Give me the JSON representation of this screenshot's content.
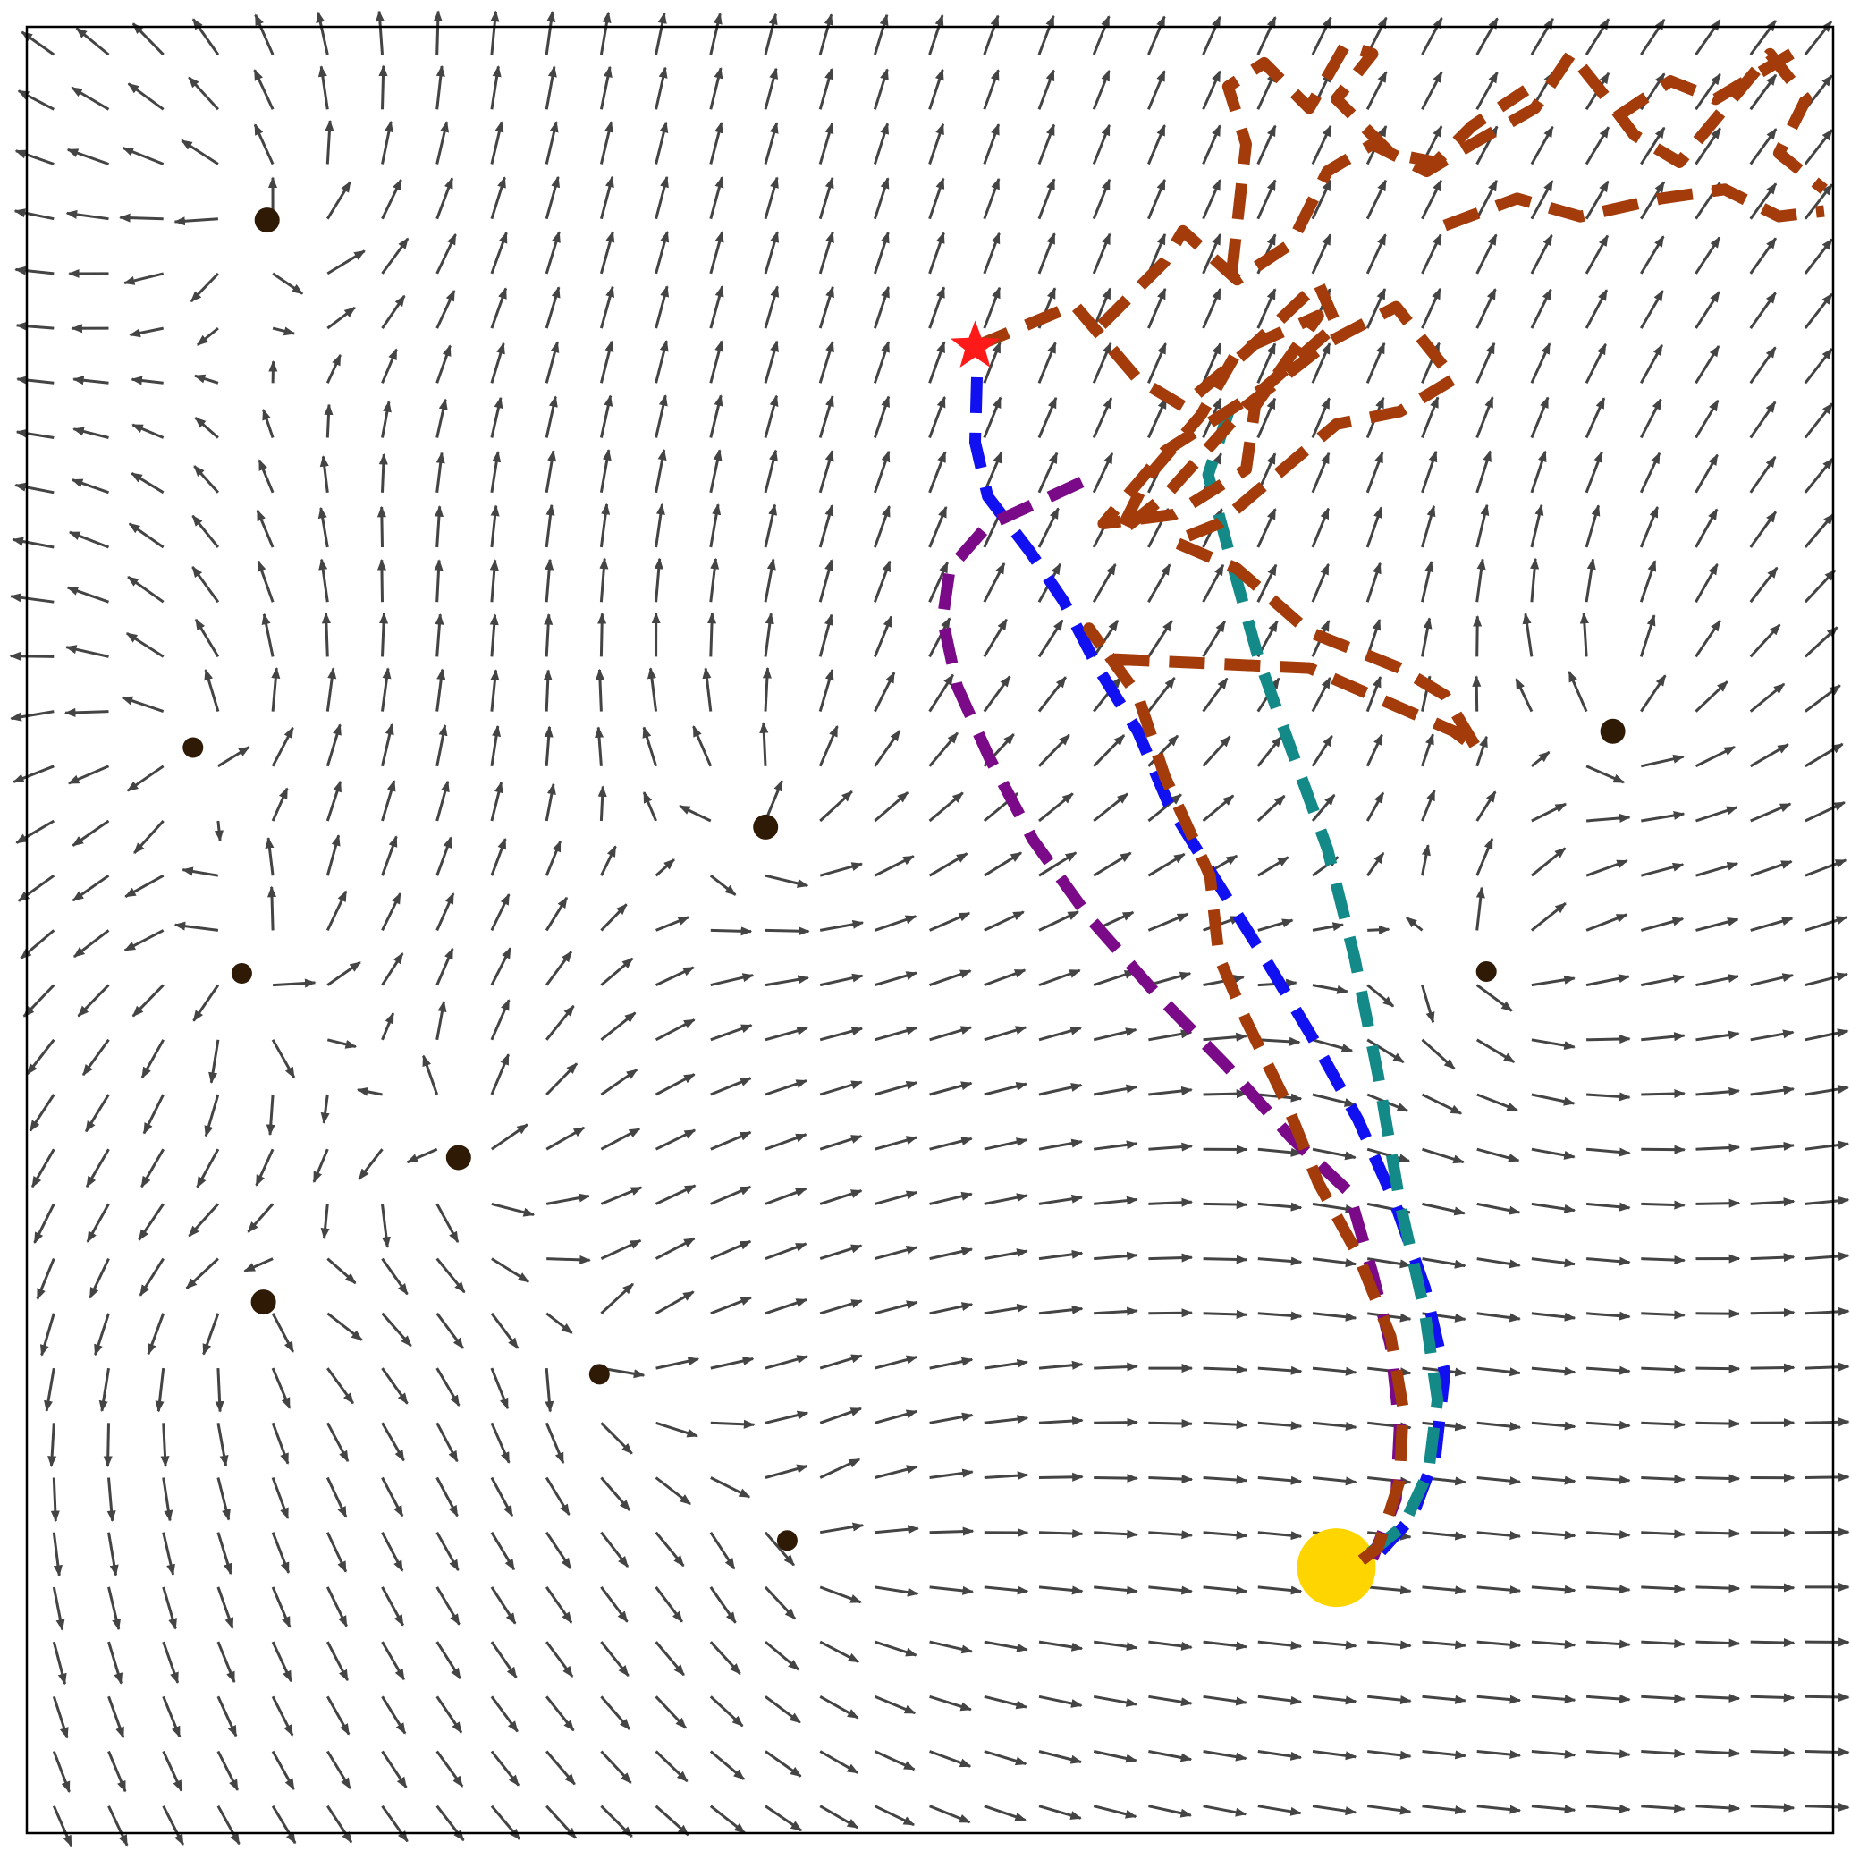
{
  "chart_data": {
    "type": "quiver",
    "xlim": [
      0,
      100
    ],
    "ylim": [
      0,
      100
    ],
    "grid": false,
    "arrow_color": "#444444",
    "start": {
      "x": 52.5,
      "y": 82.3,
      "color": "#ff1a1a",
      "marker": "star"
    },
    "goal": {
      "x": 72.5,
      "y": 14.7,
      "color": "#ffd500",
      "marker": "circle"
    },
    "obstacles": [
      {
        "x": 13.3,
        "y": 89.3,
        "size": "large"
      },
      {
        "x": 9.2,
        "y": 60.1,
        "size": "small"
      },
      {
        "x": 40.9,
        "y": 55.7,
        "size": "large"
      },
      {
        "x": 11.9,
        "y": 47.6,
        "size": "small"
      },
      {
        "x": 23.9,
        "y": 37.4,
        "size": "large"
      },
      {
        "x": 13.1,
        "y": 29.4,
        "size": "large"
      },
      {
        "x": 31.7,
        "y": 25.4,
        "size": "small"
      },
      {
        "x": 42.1,
        "y": 16.2,
        "size": "small"
      },
      {
        "x": 87.8,
        "y": 61.0,
        "size": "large"
      },
      {
        "x": 80.8,
        "y": 47.7,
        "size": "small"
      }
    ],
    "series": [
      {
        "color": "#1010f0",
        "values": [
          [
            52.6,
            80.6
          ],
          [
            52.5,
            77.0
          ],
          [
            53.2,
            74.0
          ],
          [
            55.5,
            71.0
          ],
          [
            57.4,
            68.2
          ],
          [
            59.3,
            64.5
          ],
          [
            61.5,
            61.0
          ],
          [
            63.2,
            57.0
          ],
          [
            65.8,
            52.8
          ],
          [
            68.5,
            48.5
          ],
          [
            71.2,
            44.0
          ],
          [
            73.7,
            39.5
          ],
          [
            75.7,
            35.0
          ],
          [
            77.4,
            30.2
          ],
          [
            78.5,
            25.5
          ],
          [
            78.0,
            21.0
          ],
          [
            76.7,
            17.5
          ],
          [
            74.6,
            15.2
          ]
        ]
      },
      {
        "color": "#138a87",
        "values": [
          [
            66.6,
            78.9
          ],
          [
            65.4,
            75.2
          ],
          [
            66.8,
            70.0
          ],
          [
            68.2,
            65.0
          ],
          [
            70.0,
            60.0
          ],
          [
            72.0,
            54.5
          ],
          [
            73.5,
            48.5
          ],
          [
            74.8,
            42.0
          ],
          [
            76.0,
            35.0
          ],
          [
            77.4,
            28.8
          ],
          [
            78.1,
            24.0
          ],
          [
            77.6,
            20.0
          ],
          [
            76.2,
            17.0
          ],
          [
            74.1,
            15.3
          ]
        ]
      },
      {
        "color": "#7a0a87",
        "values": [
          [
            58.4,
            74.8
          ],
          [
            55.8,
            73.6
          ],
          [
            53.2,
            72.4
          ],
          [
            51.1,
            70.0
          ],
          [
            50.7,
            67.2
          ],
          [
            51.5,
            63.5
          ],
          [
            53.3,
            59.5
          ],
          [
            55.7,
            55.0
          ],
          [
            58.8,
            50.7
          ],
          [
            62.5,
            46.5
          ],
          [
            66.4,
            42.5
          ],
          [
            70.0,
            38.5
          ],
          [
            73.2,
            35.5
          ],
          [
            74.5,
            31.0
          ],
          [
            75.5,
            27.0
          ],
          [
            76.0,
            22.5
          ],
          [
            75.8,
            18.5
          ],
          [
            74.5,
            15.2
          ]
        ]
      },
      {
        "color": "#a33c0a",
        "values": [
          [
            52.5,
            82.3
          ],
          [
            58.0,
            84.6
          ],
          [
            61.5,
            80.5
          ],
          [
            64.0,
            79.0
          ],
          [
            67.5,
            82.0
          ],
          [
            71.5,
            85.8
          ],
          [
            72.5,
            83.5
          ],
          [
            68.5,
            80.0
          ],
          [
            63.0,
            76.5
          ],
          [
            59.6,
            72.5
          ],
          [
            63.5,
            73.0
          ],
          [
            67.5,
            75.5
          ],
          [
            68.0,
            79.0
          ],
          [
            71.5,
            84.0
          ],
          [
            67.0,
            82.0
          ],
          [
            65.0,
            78.5
          ],
          [
            62.0,
            75.0
          ],
          [
            60.5,
            72.0
          ],
          [
            63.0,
            74.0
          ],
          [
            67.5,
            79.0
          ],
          [
            72.0,
            82.5
          ],
          [
            75.8,
            84.5
          ],
          [
            79.0,
            80.5
          ],
          [
            76.0,
            78.7
          ],
          [
            72.5,
            78.0
          ],
          [
            66.0,
            72.5
          ],
          [
            63.5,
            71.5
          ],
          [
            67.0,
            70.0
          ],
          [
            71.0,
            66.5
          ],
          [
            76.0,
            64.5
          ],
          [
            78.5,
            63.0
          ],
          [
            80.3,
            60.0
          ],
          [
            79.0,
            61.0
          ],
          [
            71.0,
            64.5
          ],
          [
            60.0,
            65.0
          ],
          [
            58.8,
            66.7
          ],
          [
            61.5,
            63.0
          ],
          [
            63.0,
            58.5
          ],
          [
            65.5,
            53.0
          ],
          [
            66.0,
            48.5
          ],
          [
            67.5,
            45.0
          ],
          [
            69.7,
            40.5
          ],
          [
            71.5,
            36.0
          ],
          [
            73.7,
            32.0
          ],
          [
            75.5,
            27.5
          ],
          [
            76.2,
            23.5
          ],
          [
            76.0,
            19.5
          ],
          [
            74.8,
            15.8
          ],
          [
            73.5,
            14.8
          ]
        ]
      },
      {
        "color": "#a33c0a",
        "values": [
          [
            59.5,
            83.5
          ],
          [
            63.0,
            87.0
          ],
          [
            64.0,
            88.7
          ],
          [
            67.0,
            86.0
          ],
          [
            70.0,
            88.0
          ],
          [
            72.0,
            92.0
          ],
          [
            74.5,
            93.5
          ],
          [
            77.5,
            92.0
          ],
          [
            80.0,
            93.5
          ],
          [
            83.5,
            95.5
          ],
          [
            85.5,
            98.5
          ],
          [
            87.5,
            96.0
          ],
          [
            89.0,
            94.0
          ],
          [
            91.5,
            92.5
          ],
          [
            94.0,
            95.5
          ],
          [
            96.5,
            98.5
          ],
          [
            98.5,
            96.0
          ],
          [
            97.0,
            93.0
          ],
          [
            99.5,
            91.0
          ]
        ]
      },
      {
        "color": "#a33c0a",
        "values": [
          [
            66.7,
            86.3
          ],
          [
            67.5,
            93.5
          ],
          [
            66.5,
            96.7
          ],
          [
            68.5,
            98.0
          ],
          [
            71.0,
            95.5
          ],
          [
            73.0,
            99.0
          ],
          [
            74.5,
            98.5
          ],
          [
            72.5,
            96.0
          ],
          [
            75.5,
            93.0
          ],
          [
            78.0,
            92.5
          ],
          [
            80.0,
            94.5
          ],
          [
            83.0,
            96.5
          ]
        ]
      },
      {
        "color": "#a33c0a",
        "values": [
          [
            78.5,
            89.0
          ],
          [
            82.5,
            90.5
          ],
          [
            86.0,
            89.5
          ],
          [
            90.5,
            90.5
          ],
          [
            94.0,
            91.0
          ],
          [
            97.0,
            89.5
          ],
          [
            99.5,
            89.8
          ]
        ]
      },
      {
        "color": "#a33c0a",
        "values": [
          [
            88.0,
            95.0
          ],
          [
            91.0,
            97.0
          ],
          [
            93.5,
            96.0
          ],
          [
            96.0,
            97.5
          ],
          [
            98.5,
            99.0
          ]
        ]
      }
    ]
  }
}
